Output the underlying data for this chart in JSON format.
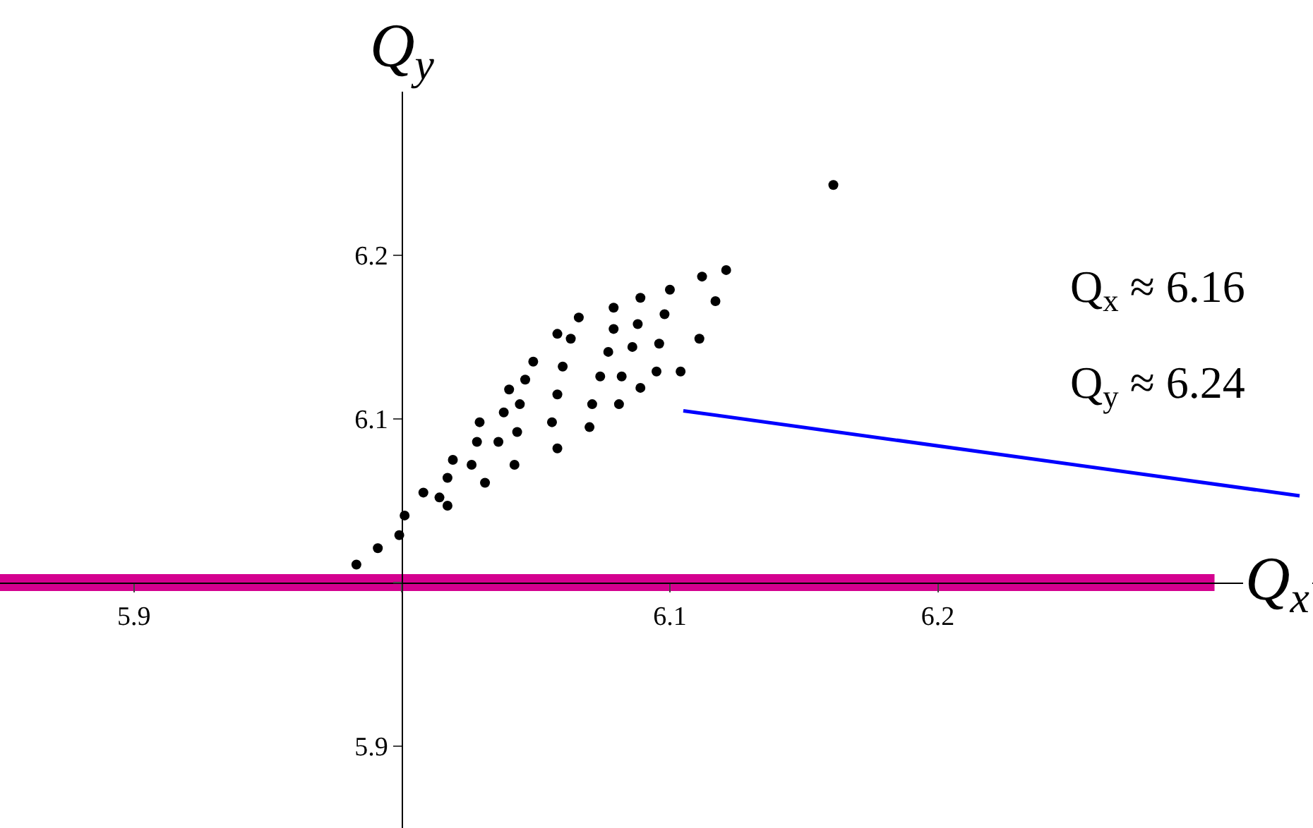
{
  "chart_data": {
    "type": "scatter",
    "xlabel": "Q$_{x}$",
    "ylabel": "Q$_{y}$",
    "xlim": [
      5.85,
      6.34
    ],
    "ylim": [
      5.85,
      6.3
    ],
    "xticks": [
      5.9,
      {
        "value": 6.0,
        "label": null
      },
      6.1,
      6.2
    ],
    "yticks": [
      5.9,
      {
        "value": 6.0,
        "label": null
      },
      6.1,
      6.2
    ],
    "grid": false,
    "marker": "circle",
    "ref_lines": [
      {
        "axis": "y",
        "value": 6.0,
        "label": null,
        "color": "#d4008f",
        "line_style": "solid"
      }
    ],
    "annotations": [
      "Q$_{x}$ ≈ 6.16",
      "Q$_{y}$ ≈ 6.24"
    ],
    "series": [
      {
        "color": "#000000",
        "x": [
          5.983,
          5.991,
          6.001,
          6.008,
          6.019,
          6.029,
          6.04,
          6.049,
          6.058,
          6.066,
          6.079,
          6.089,
          6.1,
          6.112,
          6.121,
          5.999,
          6.017,
          6.031,
          6.042,
          6.058,
          6.07,
          6.081,
          6.089,
          6.104,
          6.111,
          6.117,
          6.079,
          6.077,
          6.074,
          6.071,
          6.063,
          6.06,
          6.058,
          6.056,
          6.046,
          6.044,
          6.043,
          6.028,
          6.026,
          6.088,
          6.086,
          6.082,
          6.098,
          6.096,
          6.095,
          6.038,
          6.036,
          6.017,
          6.014,
          6.161
        ],
        "values": [
          6.011,
          6.021,
          6.041,
          6.055,
          6.075,
          6.098,
          6.118,
          6.135,
          6.152,
          6.162,
          6.168,
          6.174,
          6.179,
          6.187,
          6.191,
          6.029,
          6.047,
          6.061,
          6.072,
          6.082,
          6.095,
          6.109,
          6.119,
          6.129,
          6.149,
          6.172,
          6.155,
          6.141,
          6.126,
          6.109,
          6.149,
          6.132,
          6.115,
          6.098,
          6.124,
          6.109,
          6.092,
          6.086,
          6.072,
          6.158,
          6.144,
          6.126,
          6.164,
          6.146,
          6.129,
          6.104,
          6.086,
          6.064,
          6.052,
          6.243
        ]
      },
      {
        "type": "line",
        "marker": "none",
        "color": "#0000ff",
        "x": [
          6.105,
          6.335
        ],
        "values": [
          6.105,
          6.053
        ]
      }
    ]
  }
}
